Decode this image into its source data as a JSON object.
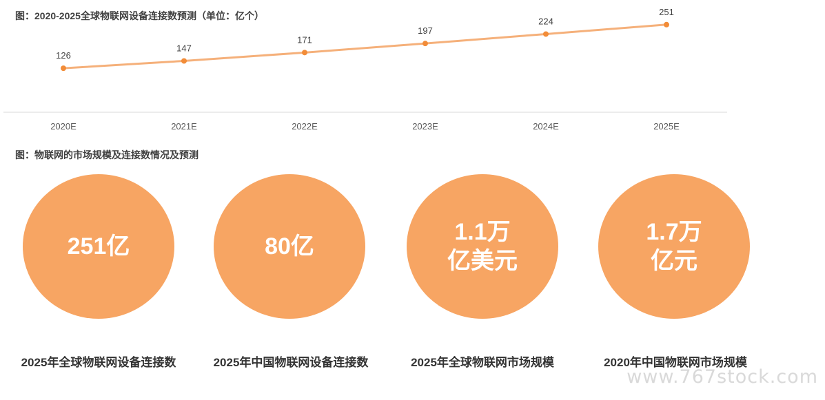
{
  "titles": {
    "line_chart": "图：2020-2025全球物联网设备连接数预测（单位：亿个）",
    "circles": "图：物联网的市场规模及连接数情况及预测"
  },
  "chart_data": {
    "type": "line",
    "title": "图：2020-2025全球物联网设备连接数预测（单位：亿个）",
    "categories": [
      "2020E",
      "2021E",
      "2022E",
      "2023E",
      "2024E",
      "2025E"
    ],
    "series": [
      {
        "values": [
          126,
          147,
          171,
          197,
          224,
          251
        ]
      }
    ],
    "ylim": [
      0,
      290
    ],
    "grid": false,
    "legend": "none",
    "color": "#f5b07a",
    "marker_color": "#f28c38"
  },
  "stats": [
    {
      "lines": [
        "251亿"
      ],
      "caption": "2025年全球物联网设备连接数"
    },
    {
      "lines": [
        "80亿"
      ],
      "caption": "2025年中国物联网设备连接数"
    },
    {
      "lines": [
        "1.1万",
        "亿美元"
      ],
      "caption": "2025年全球物联网市场规模"
    },
    {
      "lines": [
        "1.7万",
        "亿元"
      ],
      "caption": "2020年中国物联网市场规模"
    }
  ],
  "circle_color": "#f7a563",
  "watermark": "www.767stock.com"
}
